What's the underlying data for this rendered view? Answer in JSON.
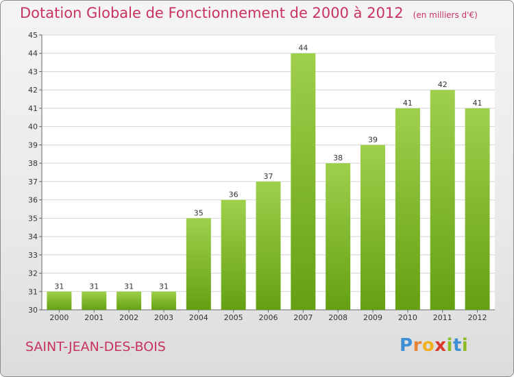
{
  "chart_data": {
    "type": "bar",
    "title": "Dotation Globale de Fonctionnement de 2000 à 2012",
    "subtitle": "(en milliers d'€)",
    "categories": [
      "2000",
      "2001",
      "2002",
      "2003",
      "2004",
      "2005",
      "2006",
      "2007",
      "2008",
      "2009",
      "2010",
      "2011",
      "2012"
    ],
    "values": [
      31,
      31,
      31,
      31,
      35,
      36,
      37,
      44,
      38,
      39,
      41,
      42,
      41
    ],
    "ylim": [
      30,
      45
    ],
    "yticks": [
      30,
      31,
      32,
      33,
      34,
      35,
      36,
      37,
      38,
      39,
      40,
      41,
      42,
      43,
      44,
      45
    ],
    "grid": true,
    "bar_color": "#7fb82e"
  },
  "place_name": "SAINT-JEAN-DES-BOIS",
  "logo": {
    "letters": [
      "P",
      "r",
      "o",
      "x",
      "i",
      "t",
      "i"
    ],
    "colors": [
      "#3d8fd6",
      "#e8833a",
      "#f2b01e",
      "#d9392b",
      "#8dbb25",
      "#3d8fd6",
      "#8dbb25"
    ]
  }
}
